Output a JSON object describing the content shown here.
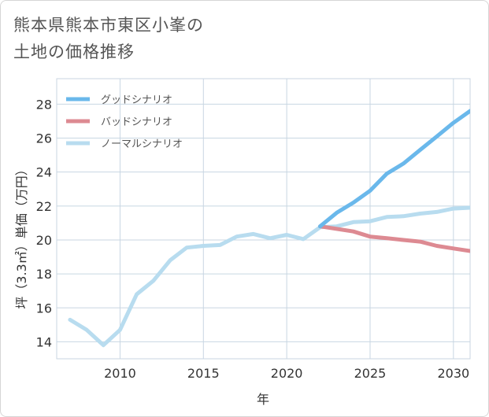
{
  "title": {
    "line1": "熊本県熊本市東区小峯の",
    "line2": "土地の価格推移"
  },
  "chart_data": {
    "type": "line",
    "xlabel": "年",
    "ylabel": "坪（3.3㎡）単価（万円）",
    "xlim": [
      2006.2,
      2031
    ],
    "ylim": [
      13.0,
      29.5
    ],
    "xticks": [
      2010,
      2015,
      2020,
      2025,
      2030
    ],
    "yticks": [
      14,
      16,
      18,
      20,
      22,
      24,
      26,
      28
    ],
    "xtick_labels": [
      "2010",
      "2015",
      "2020",
      "2025",
      "2030"
    ],
    "ytick_labels": [
      "14",
      "16",
      "18",
      "20",
      "22",
      "24",
      "26",
      "28"
    ],
    "grid": true,
    "legend_position": "top-left",
    "series": [
      {
        "name": "グッドシナリオ",
        "color": "#6ab8eb",
        "x": [
          2022,
          2023,
          2024,
          2025,
          2026,
          2027,
          2028,
          2029,
          2030,
          2031
        ],
        "values": [
          20.8,
          21.6,
          22.2,
          22.9,
          23.9,
          24.5,
          25.3,
          26.1,
          26.9,
          27.6
        ]
      },
      {
        "name": "バッドシナリオ",
        "color": "#dd8a92",
        "x": [
          2022,
          2023,
          2024,
          2025,
          2026,
          2027,
          2028,
          2029,
          2030,
          2031
        ],
        "values": [
          20.8,
          20.65,
          20.5,
          20.2,
          20.1,
          20.0,
          19.9,
          19.65,
          19.5,
          19.35
        ]
      },
      {
        "name": "ノーマルシナリオ",
        "color": "#b8dcef",
        "x": [
          2007,
          2008,
          2009,
          2010,
          2011,
          2012,
          2013,
          2014,
          2015,
          2016,
          2017,
          2018,
          2019,
          2020,
          2021,
          2022,
          2023,
          2024,
          2025,
          2026,
          2027,
          2028,
          2029,
          2030,
          2031
        ],
        "values": [
          15.3,
          14.7,
          13.8,
          14.7,
          16.8,
          17.6,
          18.8,
          19.55,
          19.65,
          19.7,
          20.2,
          20.35,
          20.1,
          20.3,
          20.05,
          20.75,
          20.8,
          21.05,
          21.1,
          21.35,
          21.4,
          21.55,
          21.65,
          21.85,
          21.9
        ]
      }
    ]
  }
}
